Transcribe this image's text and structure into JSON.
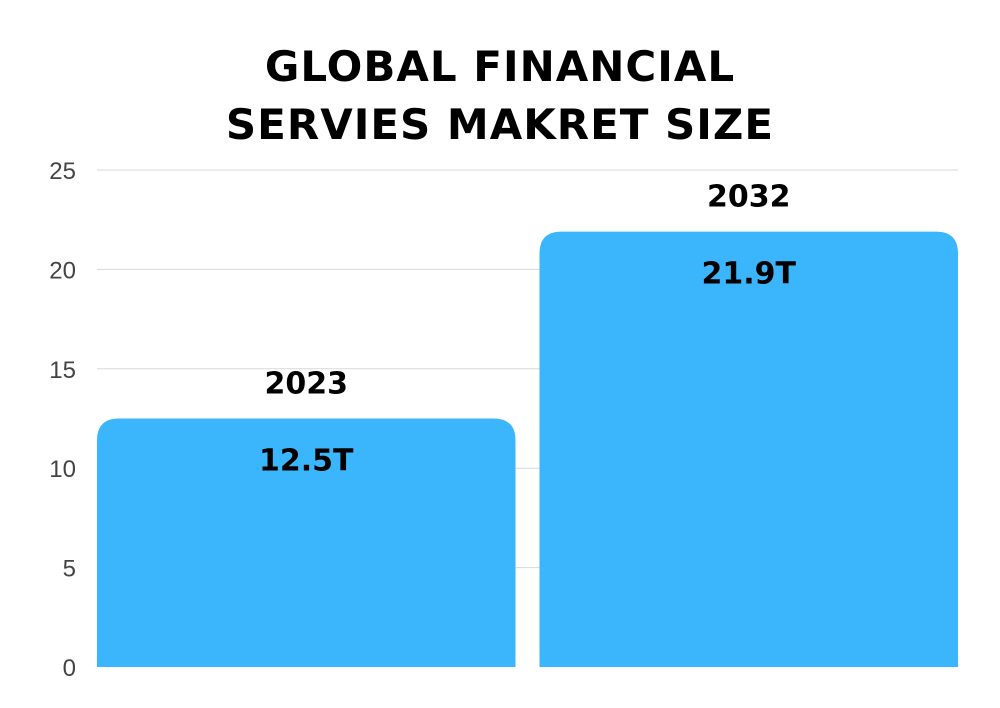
{
  "chart_data": {
    "type": "bar",
    "title_lines": [
      "GLOBAL FINANCIAL",
      "SERVIES MAKRET SIZE"
    ],
    "categories": [
      "2023",
      "2032"
    ],
    "values": [
      12.5,
      21.9
    ],
    "value_labels": [
      "12.5T",
      "21.9T"
    ],
    "ylim": [
      0,
      25
    ],
    "yticks": [
      0,
      5,
      10,
      15,
      20,
      25
    ],
    "grid": true,
    "bar_color": "#3bb6fd",
    "grid_color": "#d9d9d9",
    "xlabel": "",
    "ylabel": ""
  }
}
